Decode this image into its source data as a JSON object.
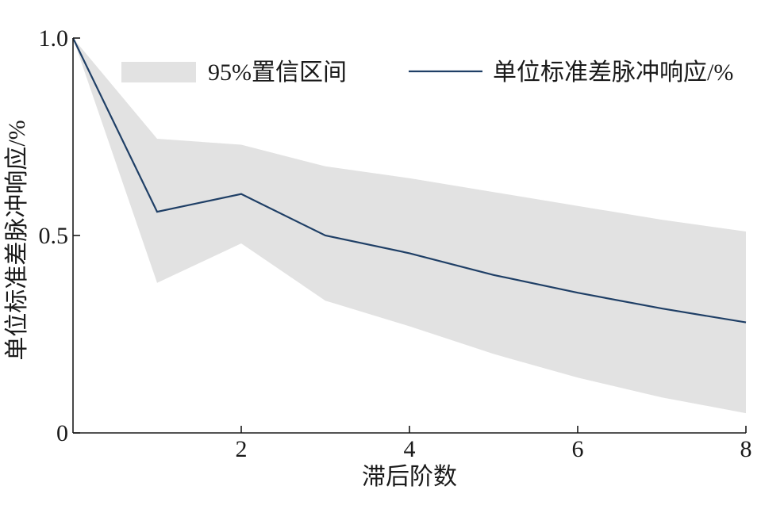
{
  "chart_data": {
    "type": "line",
    "xlabel": "滞后阶数",
    "ylabel": "单位标准差脉冲响应/%",
    "xlim": [
      0,
      8
    ],
    "ylim": [
      0,
      1.0
    ],
    "x_ticks": [
      2,
      4,
      6,
      8
    ],
    "x_tick_labels": [
      "2",
      "4",
      "6",
      "8"
    ],
    "y_ticks": [
      0,
      0.5,
      1.0
    ],
    "y_tick_labels": [
      "0",
      "0.5",
      "1.0"
    ],
    "grid": false,
    "legend_position": "top",
    "x": [
      0,
      1,
      2,
      3,
      4,
      5,
      6,
      7,
      8
    ],
    "series": [
      {
        "name": "单位标准差脉冲响应/%",
        "values": [
          1.0,
          0.56,
          0.605,
          0.5,
          0.455,
          0.4,
          0.355,
          0.315,
          0.28
        ],
        "color": "#1f3f66"
      }
    ],
    "confidence_band": {
      "name": "95%置信区间",
      "lower": [
        1.0,
        0.38,
        0.48,
        0.335,
        0.27,
        0.2,
        0.14,
        0.09,
        0.05
      ],
      "upper": [
        1.0,
        0.745,
        0.73,
        0.675,
        0.645,
        0.61,
        0.575,
        0.54,
        0.51
      ],
      "color": "#e2e2e2"
    }
  }
}
